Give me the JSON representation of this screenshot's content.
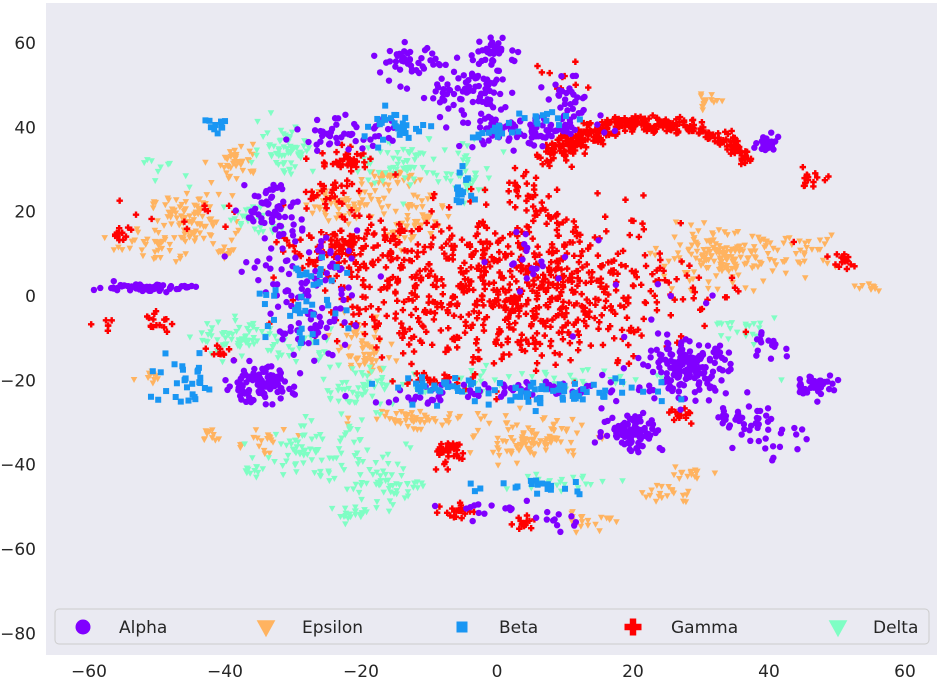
{
  "chart_data": {
    "type": "scatter",
    "title": "",
    "xlabel": "",
    "ylabel": "",
    "xlim": [
      -66,
      65
    ],
    "ylim": [
      -85,
      69
    ],
    "xticks": [
      -60,
      -40,
      -20,
      0,
      20,
      40,
      60
    ],
    "yticks": [
      60,
      40,
      20,
      0,
      -20,
      -40,
      -60,
      -80
    ],
    "xtick_labels": [
      "−60",
      "−40",
      "−20",
      "0",
      "20",
      "40",
      "60"
    ],
    "ytick_labels": [
      "60",
      "40",
      "20",
      "0",
      "−20",
      "−40",
      "−60",
      "−80"
    ],
    "grid": false,
    "legend": {
      "placement": "bottom",
      "columns": 5
    },
    "colors": {
      "background": "#eaeaf2",
      "Alpha": "#8000ff",
      "Epsilon": "#ffb360",
      "Beta": "#1996f3",
      "Gamma": "#ff0000",
      "Delta": "#7ffec4"
    },
    "series": [
      {
        "name": "Alpha",
        "marker": "circle",
        "clusters": [
          {
            "c": [
              -52,
              2
            ],
            "s": [
              3.5,
              0.5
            ],
            "n": 60
          },
          {
            "c": [
              -35,
              -21
            ],
            "s": [
              2.5,
              2
            ],
            "n": 110
          },
          {
            "c": [
              28,
              -17
            ],
            "s": [
              3,
              3
            ],
            "n": 170
          },
          {
            "c": [
              20,
              -32
            ],
            "s": [
              2.2,
              2.5
            ],
            "n": 90
          },
          {
            "c": [
              47,
              -21
            ],
            "s": [
              1.5,
              1.2
            ],
            "n": 40
          },
          {
            "c": [
              40,
              36
            ],
            "s": [
              1,
              1
            ],
            "n": 25
          },
          {
            "c": [
              5,
              8
            ],
            "s": [
              4,
              3
            ],
            "n": 20
          },
          {
            "c": [
              -33,
              20
            ],
            "s": [
              2,
              4
            ],
            "n": 60
          },
          {
            "c": [
              -28,
              5
            ],
            "s": [
              4,
              5
            ],
            "n": 80
          },
          {
            "c": [
              -27,
              -8
            ],
            "s": [
              3,
              3
            ],
            "n": 40
          },
          {
            "c": [
              -22,
              38
            ],
            "s": [
              4,
              2
            ],
            "n": 50
          },
          {
            "c": [
              -13,
              56
            ],
            "s": [
              2,
              1.5
            ],
            "n": 40
          },
          {
            "c": [
              -4,
              48
            ],
            "s": [
              4,
              4
            ],
            "n": 90
          },
          {
            "c": [
              3,
              39
            ],
            "s": [
              4,
              2
            ],
            "n": 80
          },
          {
            "c": [
              11,
              45
            ],
            "s": [
              2,
              3
            ],
            "n": 40
          },
          {
            "c": [
              0,
              58
            ],
            "s": [
              2,
              1.5
            ],
            "n": 30
          },
          {
            "c": [
              5,
              -22
            ],
            "s": [
              8,
              1
            ],
            "n": 50
          },
          {
            "c": [
              -10,
              -24
            ],
            "s": [
              4,
              1
            ],
            "n": 20
          },
          {
            "c": [
              36,
              -28
            ],
            "s": [
              2,
              2
            ],
            "n": 30
          },
          {
            "c": [
              40,
              -33
            ],
            "s": [
              3,
              3
            ],
            "n": 25
          },
          {
            "c": [
              40,
              -12
            ],
            "s": [
              2,
              2
            ],
            "n": 15
          },
          {
            "c": [
              23,
              -10
            ],
            "s": [
              6,
              6
            ],
            "n": 15
          },
          {
            "c": [
              0,
              -51
            ],
            "s": [
              3,
              1
            ],
            "n": 15
          },
          {
            "c": [
              10,
              -53
            ],
            "s": [
              2,
              1
            ],
            "n": 10
          }
        ]
      },
      {
        "name": "Epsilon",
        "marker": "triangle",
        "clusters": [
          {
            "c": [
              -45,
              18
            ],
            "s": [
              3,
              3
            ],
            "n": 90
          },
          {
            "c": [
              -50,
              12
            ],
            "s": [
              3,
              2
            ],
            "n": 40
          },
          {
            "c": [
              -38,
              32
            ],
            "s": [
              1.5,
              2
            ],
            "n": 40
          },
          {
            "c": [
              -22,
              22
            ],
            "s": [
              3,
              2.5
            ],
            "n": 60
          },
          {
            "c": [
              -16,
              28
            ],
            "s": [
              2,
              1
            ],
            "n": 30
          },
          {
            "c": [
              -12,
              18
            ],
            "s": [
              2,
              3
            ],
            "n": 50
          },
          {
            "c": [
              -20,
              -12
            ],
            "s": [
              2,
              3
            ],
            "n": 50
          },
          {
            "c": [
              -12,
              -29
            ],
            "s": [
              4,
              1
            ],
            "n": 50
          },
          {
            "c": [
              -35,
              -35
            ],
            "s": [
              2,
              2
            ],
            "n": 20
          },
          {
            "c": [
              5,
              -34
            ],
            "s": [
              4,
              2.5
            ],
            "n": 100
          },
          {
            "c": [
              14,
              -53
            ],
            "s": [
              2,
              1
            ],
            "n": 20
          },
          {
            "c": [
              25,
              -47
            ],
            "s": [
              2,
              1
            ],
            "n": 20
          },
          {
            "c": [
              29,
              -42
            ],
            "s": [
              2,
              1
            ],
            "n": 15
          },
          {
            "c": [
              33,
              9
            ],
            "s": [
              4.5,
              3
            ],
            "n": 170
          },
          {
            "c": [
              46,
              11
            ],
            "s": [
              2,
              2
            ],
            "n": 25
          },
          {
            "c": [
              55,
              2
            ],
            "s": [
              1,
              0.5
            ],
            "n": 10
          },
          {
            "c": [
              31,
              46
            ],
            "s": [
              1,
              1
            ],
            "n": 15
          },
          {
            "c": [
              -51,
              -18
            ],
            "s": [
              1,
              1
            ],
            "n": 10
          },
          {
            "c": [
              -42,
              -33
            ],
            "s": [
              1,
              1
            ],
            "n": 10
          },
          {
            "c": [
              -40,
              10
            ],
            "s": [
              1,
              1
            ],
            "n": 10
          },
          {
            "c": [
              -18,
              -16
            ],
            "s": [
              2,
              2
            ],
            "n": 15
          }
        ]
      },
      {
        "name": "Beta",
        "marker": "square",
        "clusters": [
          {
            "c": [
              -46,
              -21
            ],
            "s": [
              2.5,
              3
            ],
            "n": 30
          },
          {
            "c": [
              -41,
              40
            ],
            "s": [
              1,
              1
            ],
            "n": 10
          },
          {
            "c": [
              -15,
              40
            ],
            "s": [
              3,
              2
            ],
            "n": 30
          },
          {
            "c": [
              -5,
              26
            ],
            "s": [
              1,
              2
            ],
            "n": 15
          },
          {
            "c": [
              -1,
              39
            ],
            "s": [
              2,
              1
            ],
            "n": 15
          },
          {
            "c": [
              8,
              42
            ],
            "s": [
              2,
              1
            ],
            "n": 15
          },
          {
            "c": [
              5,
              -23
            ],
            "s": [
              10,
              1.5
            ],
            "n": 70
          },
          {
            "c": [
              -9,
              -21
            ],
            "s": [
              4,
              1
            ],
            "n": 20
          },
          {
            "c": [
              7,
              -45
            ],
            "s": [
              4,
              1
            ],
            "n": 20
          },
          {
            "c": [
              -30,
              -3
            ],
            "s": [
              3,
              4
            ],
            "n": 30
          },
          {
            "c": [
              -27,
              6
            ],
            "s": [
              2,
              2
            ],
            "n": 15
          }
        ]
      },
      {
        "name": "Gamma",
        "marker": "plus",
        "clusters": [
          {
            "c": [
              4,
              2
            ],
            "s": [
              12,
              9
            ],
            "n": 700
          },
          {
            "c": [
              -22,
              12
            ],
            "s": [
              4,
              3
            ],
            "n": 120
          },
          {
            "c": [
              -18,
              -2
            ],
            "s": [
              5,
              5
            ],
            "n": 60
          },
          {
            "c": [
              -22,
              32
            ],
            "s": [
              2,
              1.5
            ],
            "n": 40
          },
          {
            "c": [
              -25,
              24
            ],
            "s": [
              2,
              2
            ],
            "n": 30
          },
          {
            "c": [
              -55,
              15
            ],
            "s": [
              1,
              1
            ],
            "n": 15
          },
          {
            "c": [
              -57,
              -6
            ],
            "s": [
              1,
              1
            ],
            "n": 6
          },
          {
            "c": [
              -50,
              -6
            ],
            "s": [
              1,
              1
            ],
            "n": 15
          },
          {
            "c": [
              -41,
              -13
            ],
            "s": [
              1,
              1
            ],
            "n": 10
          },
          {
            "c": [
              -7,
              -37
            ],
            "s": [
              1.5,
              1.5
            ],
            "n": 40
          },
          {
            "c": [
              -6,
              -51
            ],
            "s": [
              1,
              1
            ],
            "n": 20
          },
          {
            "c": [
              4,
              -54
            ],
            "s": [
              1,
              1
            ],
            "n": 15
          },
          {
            "c": [
              46,
              28
            ],
            "s": [
              1,
              1
            ],
            "n": 15
          },
          {
            "c": [
              51,
              8
            ],
            "s": [
              1,
              1
            ],
            "n": 15
          },
          {
            "c": [
              27,
              -28
            ],
            "s": [
              1,
              1
            ],
            "n": 15
          },
          {
            "c": [
              -10,
              -20
            ],
            "s": [
              5,
              1
            ],
            "n": 20
          },
          {
            "c": [
              -45,
              18
            ],
            "s": [
              5,
              2
            ],
            "n": 10
          },
          {
            "c": [
              8,
              52
            ],
            "s": [
              3,
              2
            ],
            "n": 10
          }
        ],
        "arcs": [
          {
            "cx": 22,
            "cy": 32,
            "rx": 14,
            "ry": 9,
            "a0": 180,
            "a1": 360,
            "n": 250,
            "w": 2
          },
          {
            "cx": 22,
            "cy": 30,
            "rx": 12,
            "ry": 11,
            "a0": 200,
            "a1": 300,
            "n": 100,
            "w": 2
          },
          {
            "cx": 12,
            "cy": 26,
            "rx": 8,
            "ry": 8,
            "a0": 100,
            "a1": 200,
            "n": 40,
            "w": 2
          }
        ]
      },
      {
        "name": "Delta",
        "marker": "triangle",
        "clusters": [
          {
            "c": [
              -31,
              35
            ],
            "s": [
              2,
              3
            ],
            "n": 60
          },
          {
            "c": [
              -14,
              32
            ],
            "s": [
              3,
              3
            ],
            "n": 60
          },
          {
            "c": [
              -4,
              29
            ],
            "s": [
              2,
              3
            ],
            "n": 40
          },
          {
            "c": [
              -36,
              18
            ],
            "s": [
              2,
              2
            ],
            "n": 30
          },
          {
            "c": [
              -38,
              -10
            ],
            "s": [
              3,
              2
            ],
            "n": 60
          },
          {
            "c": [
              -30,
              -12
            ],
            "s": [
              3,
              2
            ],
            "n": 30
          },
          {
            "c": [
              -20,
              -22
            ],
            "s": [
              3,
              3
            ],
            "n": 60
          },
          {
            "c": [
              -27,
              -37
            ],
            "s": [
              4,
              3
            ],
            "n": 80
          },
          {
            "c": [
              -17,
              -45
            ],
            "s": [
              3,
              3
            ],
            "n": 50
          },
          {
            "c": [
              -21,
              -52
            ],
            "s": [
              1.5,
              1
            ],
            "n": 20
          },
          {
            "c": [
              -36,
              -41
            ],
            "s": [
              1,
              1
            ],
            "n": 10
          },
          {
            "c": [
              -12,
              -45
            ],
            "s": [
              1,
              1
            ],
            "n": 10
          },
          {
            "c": [
              10,
              -44
            ],
            "s": [
              4,
              1
            ],
            "n": 20
          },
          {
            "c": [
              35,
              -8
            ],
            "s": [
              3,
              2
            ],
            "n": 20
          },
          {
            "c": [
              6,
              -20
            ],
            "s": [
              10,
              1.5
            ],
            "n": 50
          },
          {
            "c": [
              -50,
              30
            ],
            "s": [
              2,
              2
            ],
            "n": 10
          }
        ]
      }
    ]
  }
}
